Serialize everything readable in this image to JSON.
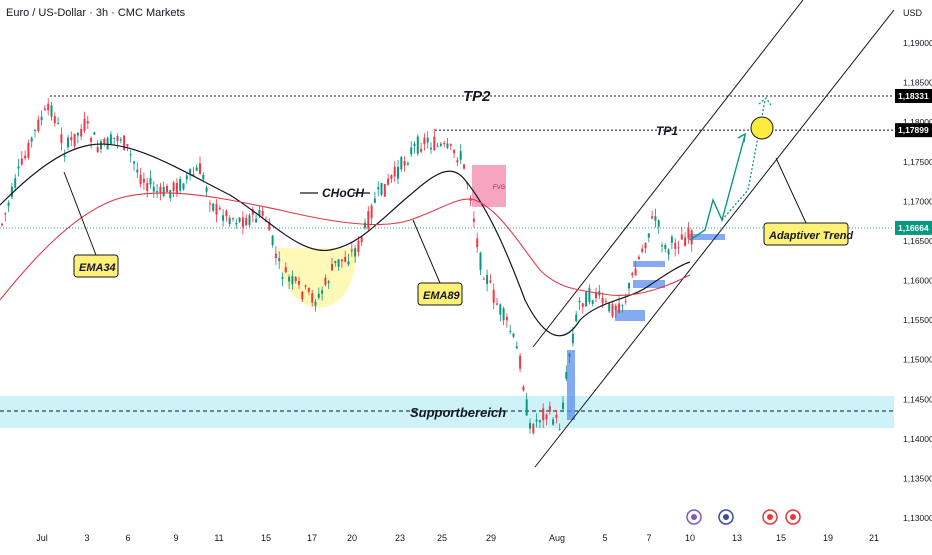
{
  "header": {
    "title": "Euro / US-Dollar · 3h · CMC Markets",
    "currency": "USD"
  },
  "chart_data": {
    "type": "candlestick",
    "y_axis": {
      "ticks": [
        "1,19000",
        "1,18500",
        "1,18000",
        "1,17500",
        "1,17000",
        "1,16500",
        "1,16000",
        "1,15500",
        "1,15000",
        "1,14500",
        "1,14000",
        "1,13500",
        "1,13000"
      ],
      "ylim": [
        1.127,
        1.194
      ]
    },
    "x_axis": {
      "ticks": [
        "Jul",
        "3",
        "6",
        "9",
        "11",
        "15",
        "17",
        "20",
        "23",
        "25",
        "29",
        "Aug",
        "5",
        "7",
        "10",
        "13",
        "15",
        "19",
        "21"
      ]
    },
    "price_levels": {
      "tp2": {
        "label": "TP2",
        "value": 1.18331,
        "tag": "1,18331",
        "color": "#000000"
      },
      "tp1": {
        "label": "TP1",
        "value": 1.17899,
        "tag": "1,17899",
        "color": "#000000"
      },
      "current": {
        "value": 1.16664,
        "tag": "1,16664",
        "color": "#089981"
      }
    },
    "support_zone": {
      "label": "Supportbereich",
      "from": 1.1415,
      "to": 1.1455,
      "mid": 1.1432,
      "color": "#b2ebf2"
    },
    "annotations": {
      "choch": "CHoCH",
      "ema34": "EMA34",
      "ema89": "EMA89",
      "adaptive_trend": "Adaptiver Trend",
      "fvg": "FVG"
    },
    "series": [
      {
        "name": "EMA34",
        "color": "#131722"
      },
      {
        "name": "EMA89",
        "color": "#e03a4a"
      }
    ],
    "colors": {
      "up": "#089981",
      "down": "#f23645",
      "fvg_blue": "#5b8def",
      "fvg_pink": "#f48fb1",
      "choch_zone": "#fff59d",
      "target_circle": "#ffeb3b"
    }
  }
}
